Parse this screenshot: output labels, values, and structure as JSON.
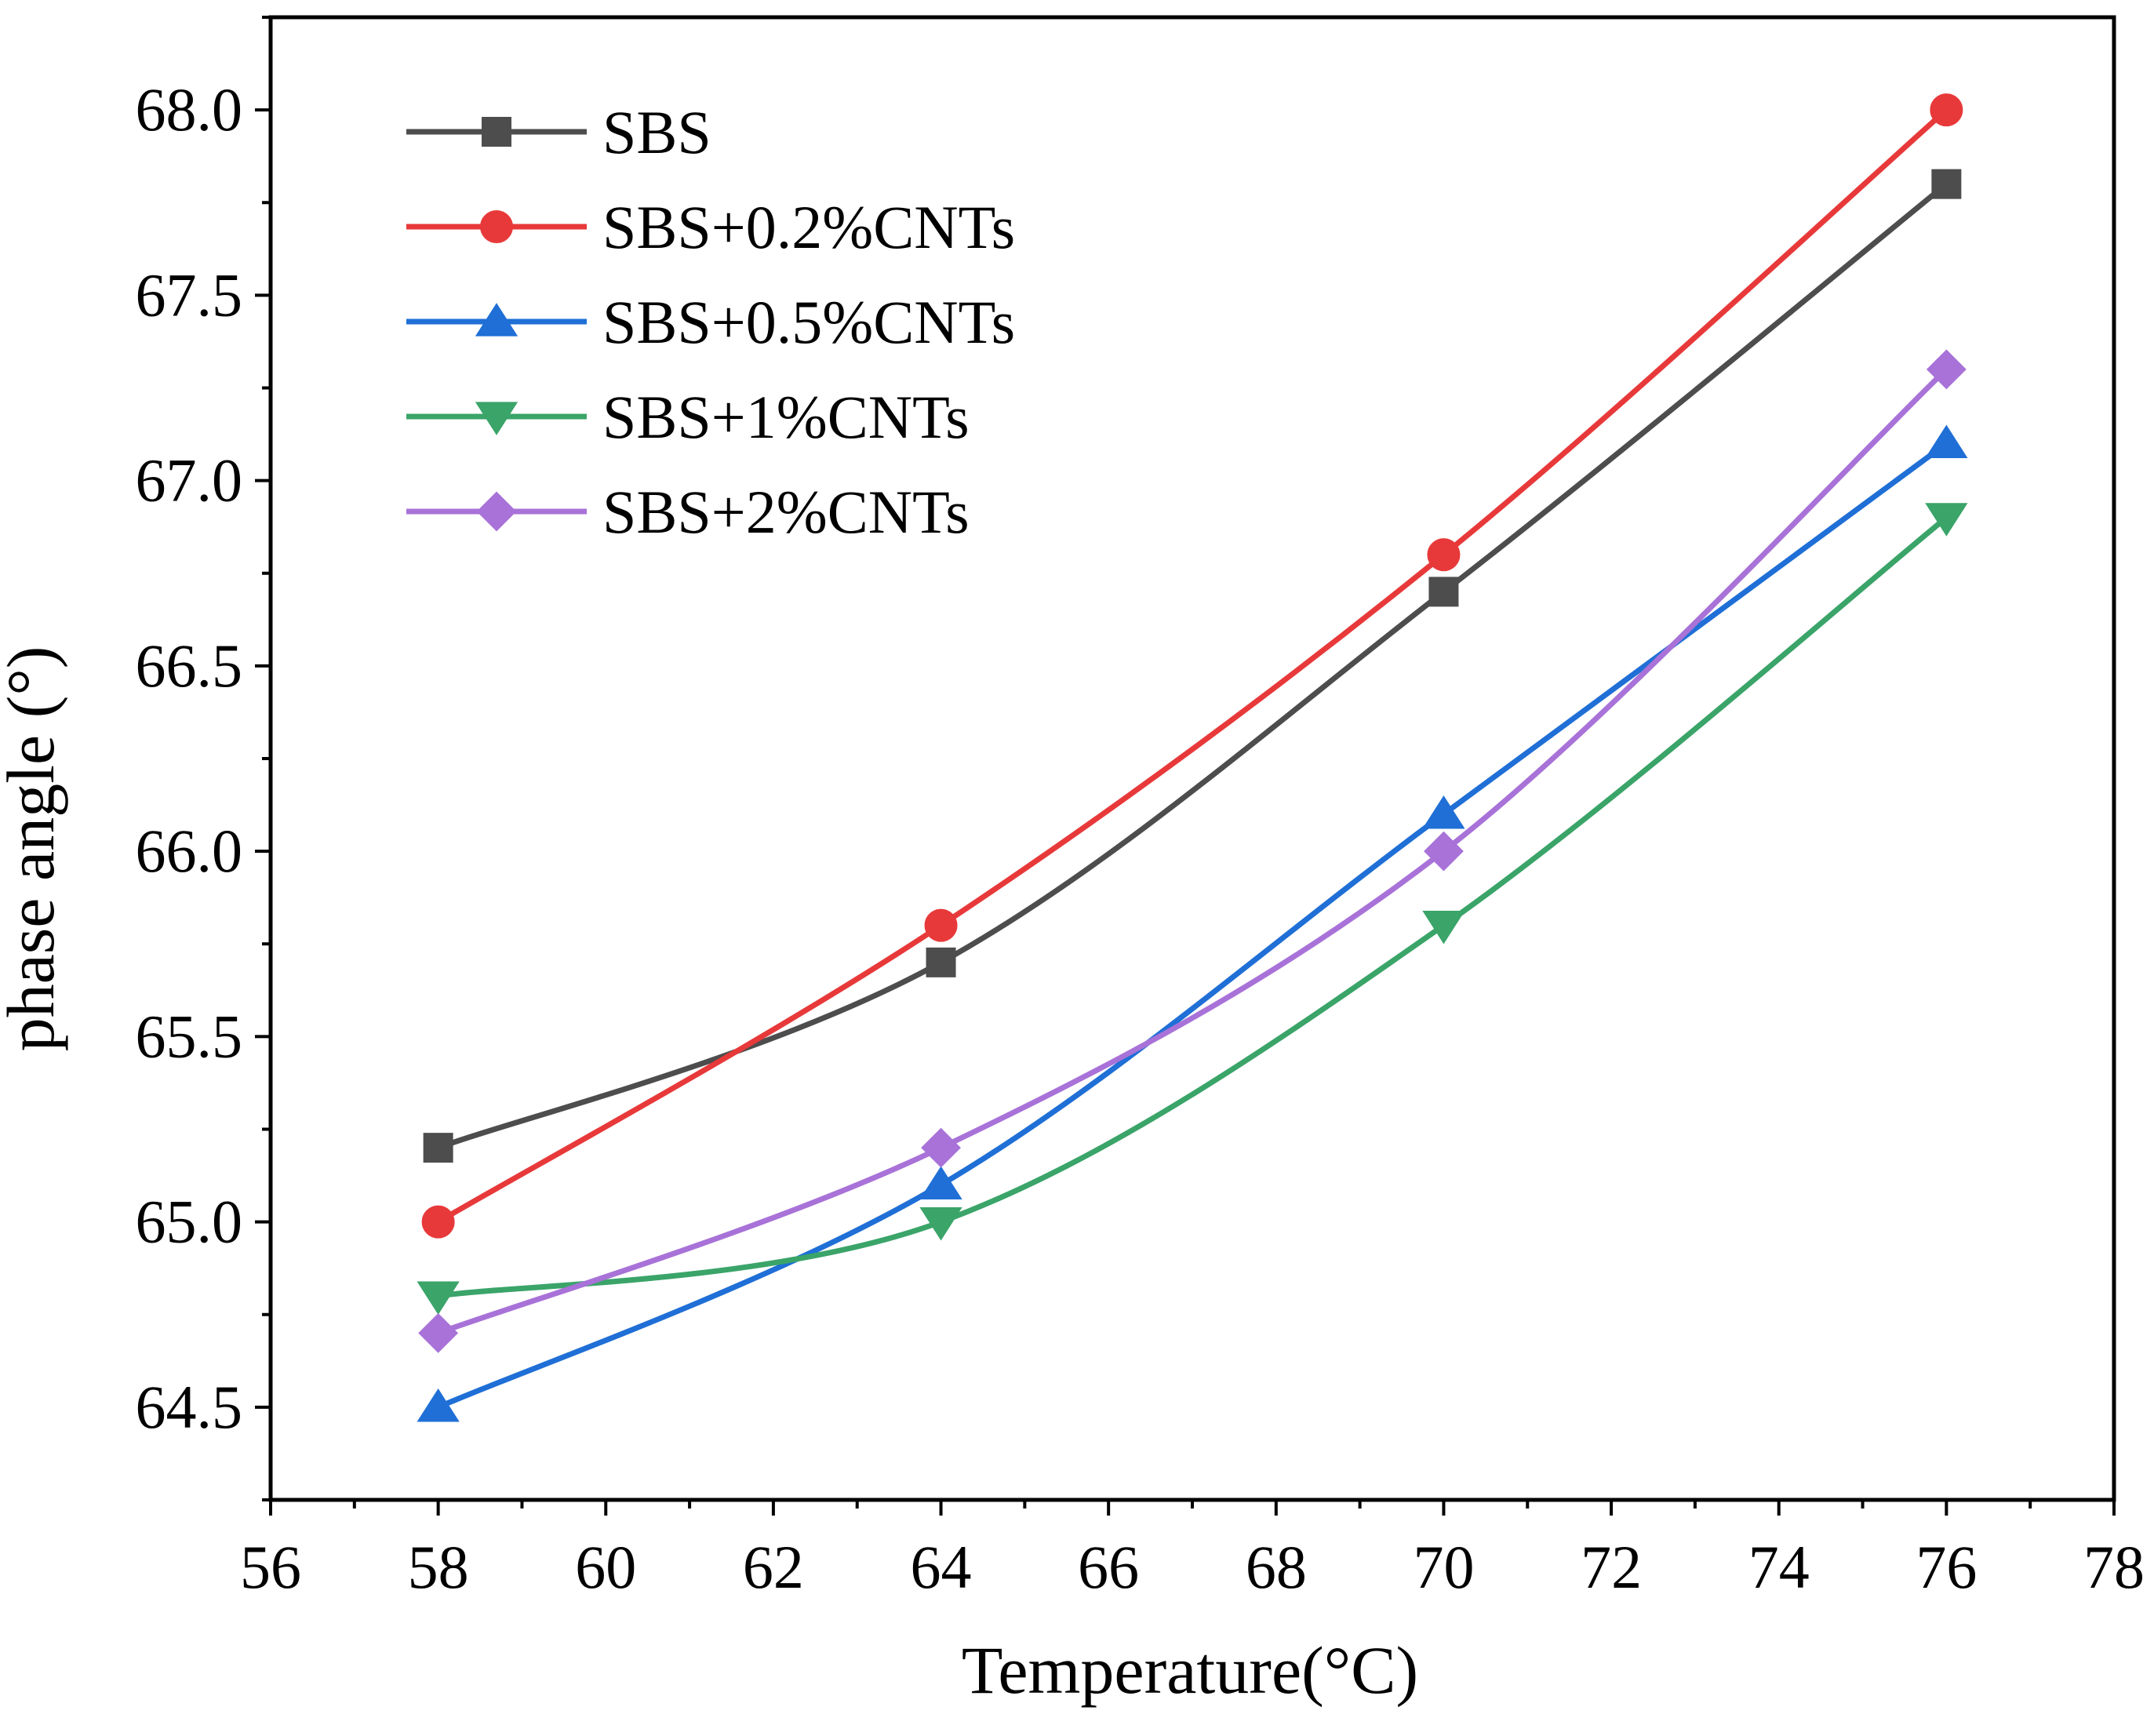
{
  "chart_data": {
    "type": "line",
    "title": "",
    "xlabel": "Temperature(°C)",
    "ylabel": "phase angle (°)",
    "xlim": [
      56,
      78
    ],
    "ylim": [
      64.25,
      68.25
    ],
    "xticks": [
      "56",
      "58",
      "60",
      "62",
      "64",
      "66",
      "68",
      "70",
      "72",
      "74",
      "76",
      "78"
    ],
    "yticks": [
      "64.5",
      "65.0",
      "65.5",
      "66.0",
      "66.5",
      "67.0",
      "67.5",
      "68.0"
    ],
    "grid": false,
    "legend_position": "top-left",
    "x": [
      58,
      64,
      70,
      76
    ],
    "series": [
      {
        "name": "SBS",
        "values": [
          65.2,
          65.7,
          66.7,
          67.8
        ],
        "color": "#4d4d4d",
        "marker": "square"
      },
      {
        "name": "SBS+0.2%CNTs",
        "values": [
          65.0,
          65.8,
          66.8,
          68.0
        ],
        "color": "#e8393a",
        "marker": "circle"
      },
      {
        "name": "SBS+0.5%CNTs",
        "values": [
          64.5,
          65.1,
          66.1,
          67.1
        ],
        "color": "#1f6fd6",
        "marker": "triangle-up"
      },
      {
        "name": "SBS+1%CNTs",
        "values": [
          64.8,
          65.0,
          65.8,
          66.9
        ],
        "color": "#3aa469",
        "marker": "triangle-down"
      },
      {
        "name": "SBS+2%CNTs",
        "values": [
          64.7,
          65.2,
          66.0,
          67.3
        ],
        "color": "#a872d8",
        "marker": "diamond"
      }
    ]
  }
}
